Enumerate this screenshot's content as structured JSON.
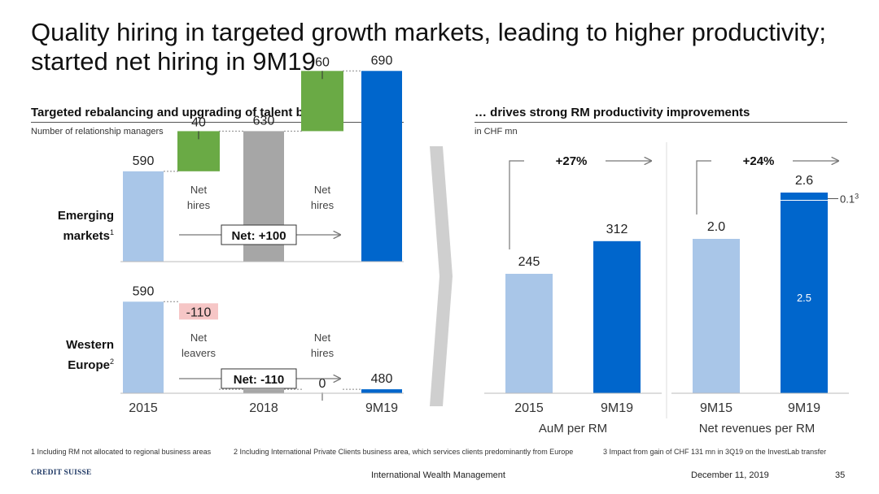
{
  "slide": {
    "title": "Quality hiring in targeted growth markets, leading to higher productivity; started net hiring in 9M19"
  },
  "left_panel": {
    "heading": "Targeted rebalancing and upgrading of talent base…",
    "subheading": "Number of relationship managers",
    "row_labels": [
      {
        "line1": "Emerging",
        "line2": "markets",
        "sup": "1"
      },
      {
        "line1": "Western",
        "line2": "Europe",
        "sup": "2"
      }
    ]
  },
  "right_panel": {
    "heading": "… drives strong RM productivity improvements",
    "subheading": "in CHF mn"
  },
  "chart_data": [
    {
      "type": "bar",
      "subtype": "waterfall",
      "row": "Emerging markets",
      "categories": [
        "2015",
        "Net hires",
        "2018",
        "Net hires",
        "9M19"
      ],
      "values": [
        590,
        40,
        630,
        60,
        690
      ],
      "value_labels": [
        "590",
        "40",
        "630",
        "60",
        "690"
      ],
      "annotation": "Net: +100",
      "colors": [
        "#a9c6e8",
        "#6aaa45",
        "#a6a6a6",
        "#6aaa45",
        "#0066cc"
      ]
    },
    {
      "type": "bar",
      "subtype": "waterfall",
      "row": "Western Europe",
      "categories": [
        "2015",
        "Net leavers",
        "2018",
        "Net hires",
        "9M19"
      ],
      "values": [
        590,
        -110,
        480,
        0,
        480
      ],
      "value_labels": [
        "590",
        "-110",
        "480",
        "0",
        "480"
      ],
      "annotation": "Net: -110",
      "x_tick_labels": [
        "2015",
        "2018",
        "9M19"
      ],
      "colors": [
        "#a9c6e8",
        "#f6c6c6",
        "#a6a6a6",
        "#6aaa45",
        "#0066cc"
      ]
    },
    {
      "type": "bar",
      "xlabel": "AuM per RM",
      "categories": [
        "2015",
        "9M19"
      ],
      "values": [
        245,
        312
      ],
      "value_labels": [
        "245",
        "312"
      ],
      "growth_label": "+27%",
      "colors": [
        "#a9c6e8",
        "#0066cc"
      ]
    },
    {
      "type": "bar",
      "xlabel": "Net revenues per RM",
      "categories": [
        "9M15",
        "9M19"
      ],
      "values": [
        2.0,
        2.6
      ],
      "value_labels": [
        "2.0",
        "2.6"
      ],
      "segments_9M19": [
        {
          "label": "2.5",
          "value": 2.5
        },
        {
          "label": "0.1",
          "sup": "3",
          "value": 0.1
        }
      ],
      "growth_label": "+24%",
      "colors": [
        "#a9c6e8",
        "#0066cc"
      ]
    }
  ],
  "footnotes": [
    "1 Including RM not allocated to regional business areas",
    "2 Including International Private Clients business area, which services clients predominantly from Europe",
    "3 Impact from gain of CHF 131 mn in 3Q19 on the InvestLab transfer"
  ],
  "footer": {
    "logo_text": "CREDIT SUISSE",
    "division": "International Wealth Management",
    "date": "December 11, 2019",
    "page": "35"
  }
}
